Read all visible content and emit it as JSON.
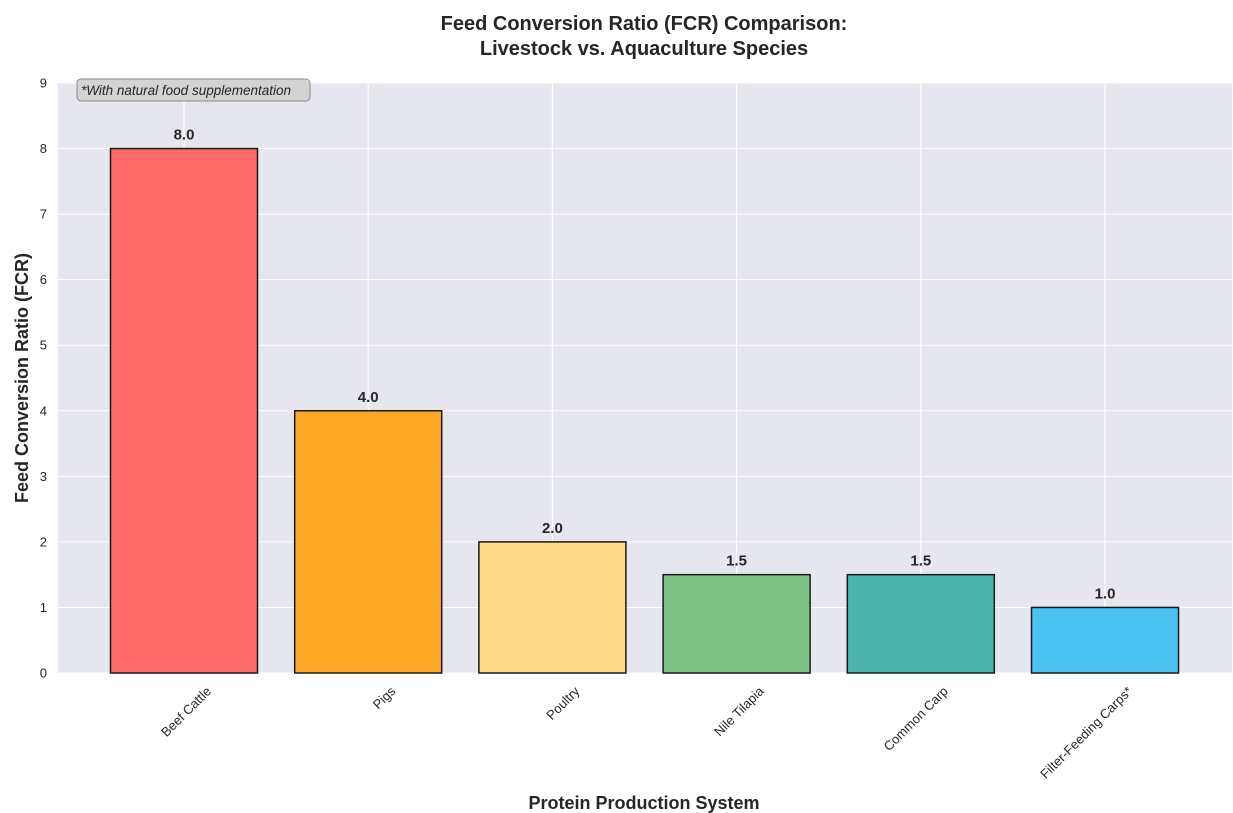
{
  "chart_data": {
    "type": "bar",
    "title_lines": [
      "Feed Conversion Ratio (FCR) Comparison:",
      "Livestock vs. Aquaculture Species"
    ],
    "xlabel": "Protein Production System",
    "ylabel": "Feed Conversion Ratio (FCR)",
    "categories": [
      "Beef Cattle",
      "Pigs",
      "Poultry",
      "Nile Tilapia",
      "Common Carp",
      "Filter-Feeding Carps*"
    ],
    "values": [
      8.0,
      4.0,
      2.0,
      1.5,
      1.5,
      1.0
    ],
    "value_labels": [
      "8.0",
      "4.0",
      "2.0",
      "1.5",
      "1.5",
      "1.0"
    ],
    "colors": [
      "#ff6b6b",
      "#ffa726",
      "#ffd985",
      "#7dc383",
      "#4ab3ab",
      "#4bc3f2"
    ],
    "ylim": [
      0,
      9
    ],
    "yticks": [
      0,
      1,
      2,
      3,
      4,
      5,
      6,
      7,
      8,
      9
    ],
    "grid": true,
    "annotation": "*With natural food supplementation",
    "annotation_placement": "top-left"
  }
}
